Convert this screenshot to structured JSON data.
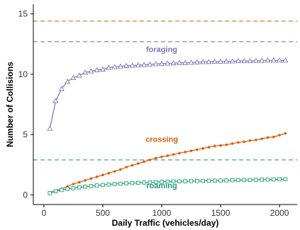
{
  "chart_data": {
    "type": "line",
    "xlabel": "Daily Traffic (vehicles/day)",
    "ylabel": "Number of Collisions",
    "xlim": [
      -90,
      2150
    ],
    "ylim": [
      -0.8,
      15.8
    ],
    "xticks": [
      0,
      500,
      1000,
      1500,
      2000
    ],
    "yticks": [
      0,
      5,
      10,
      15
    ],
    "grid": false,
    "legend": "inline labels",
    "hlines": [
      {
        "y": 14.4,
        "color": "#e07b25",
        "style": "dashed"
      },
      {
        "y": 12.7,
        "color": "#8a83c2",
        "style": "dashed"
      },
      {
        "y": 2.9,
        "color": "#2aa07a",
        "style": "dashed"
      }
    ],
    "series": [
      {
        "name": "foraging",
        "color": "#7b73b8",
        "marker": "triangle",
        "label_at": [
          1000,
          11.85
        ],
        "x": [
          50,
          100,
          150,
          200,
          250,
          300,
          350,
          400,
          450,
          500,
          550,
          600,
          650,
          700,
          750,
          800,
          850,
          900,
          950,
          1000,
          1050,
          1100,
          1150,
          1200,
          1250,
          1300,
          1350,
          1400,
          1450,
          1500,
          1550,
          1600,
          1650,
          1700,
          1750,
          1800,
          1850,
          1900,
          1950,
          2000,
          2050
        ],
        "values": [
          5.5,
          7.8,
          8.8,
          9.4,
          9.7,
          9.9,
          10.15,
          10.25,
          10.35,
          10.4,
          10.55,
          10.6,
          10.65,
          10.7,
          10.72,
          10.75,
          10.78,
          10.82,
          10.85,
          10.88,
          10.9,
          10.92,
          10.95,
          10.95,
          10.97,
          11.0,
          11.02,
          11.03,
          11.05,
          11.05,
          11.07,
          11.08,
          11.1,
          11.1,
          11.1,
          11.12,
          11.13,
          11.15,
          11.15,
          11.15,
          11.15
        ]
      },
      {
        "name": "crossing",
        "color": "#d95f0e",
        "marker": "dot",
        "label_at": [
          1000,
          4.4
        ],
        "x": [
          50,
          100,
          150,
          200,
          250,
          300,
          350,
          400,
          450,
          500,
          550,
          600,
          650,
          700,
          750,
          800,
          850,
          900,
          950,
          1000,
          1050,
          1100,
          1150,
          1200,
          1250,
          1300,
          1350,
          1400,
          1450,
          1500,
          1550,
          1600,
          1650,
          1700,
          1750,
          1800,
          1850,
          1900,
          1950,
          2000,
          2050
        ],
        "values": [
          0.2,
          0.35,
          0.5,
          0.7,
          0.9,
          1.05,
          1.2,
          1.35,
          1.5,
          1.65,
          1.8,
          1.95,
          2.1,
          2.3,
          2.45,
          2.6,
          2.75,
          2.9,
          3.05,
          3.15,
          3.25,
          3.35,
          3.45,
          3.55,
          3.65,
          3.75,
          3.85,
          3.95,
          4.05,
          4.1,
          4.15,
          4.25,
          4.35,
          4.4,
          4.5,
          4.55,
          4.65,
          4.75,
          4.8,
          4.95,
          5.1
        ]
      },
      {
        "name": "roaming",
        "color": "#1b9e77",
        "marker": "square",
        "label_at": [
          1000,
          0.55
        ],
        "x": [
          50,
          100,
          150,
          200,
          250,
          300,
          350,
          400,
          450,
          500,
          550,
          600,
          650,
          700,
          750,
          800,
          850,
          900,
          950,
          1000,
          1050,
          1100,
          1150,
          1200,
          1250,
          1300,
          1350,
          1400,
          1450,
          1500,
          1550,
          1600,
          1650,
          1700,
          1750,
          1800,
          1850,
          1900,
          1950,
          2000,
          2050
        ],
        "values": [
          0.15,
          0.3,
          0.4,
          0.5,
          0.55,
          0.62,
          0.68,
          0.73,
          0.78,
          0.82,
          0.86,
          0.9,
          0.93,
          0.96,
          0.98,
          1.0,
          1.02,
          1.04,
          1.06,
          1.08,
          1.1,
          1.11,
          1.12,
          1.13,
          1.14,
          1.15,
          1.16,
          1.17,
          1.18,
          1.19,
          1.2,
          1.21,
          1.22,
          1.23,
          1.24,
          1.25,
          1.26,
          1.27,
          1.28,
          1.29,
          1.3
        ]
      }
    ]
  }
}
